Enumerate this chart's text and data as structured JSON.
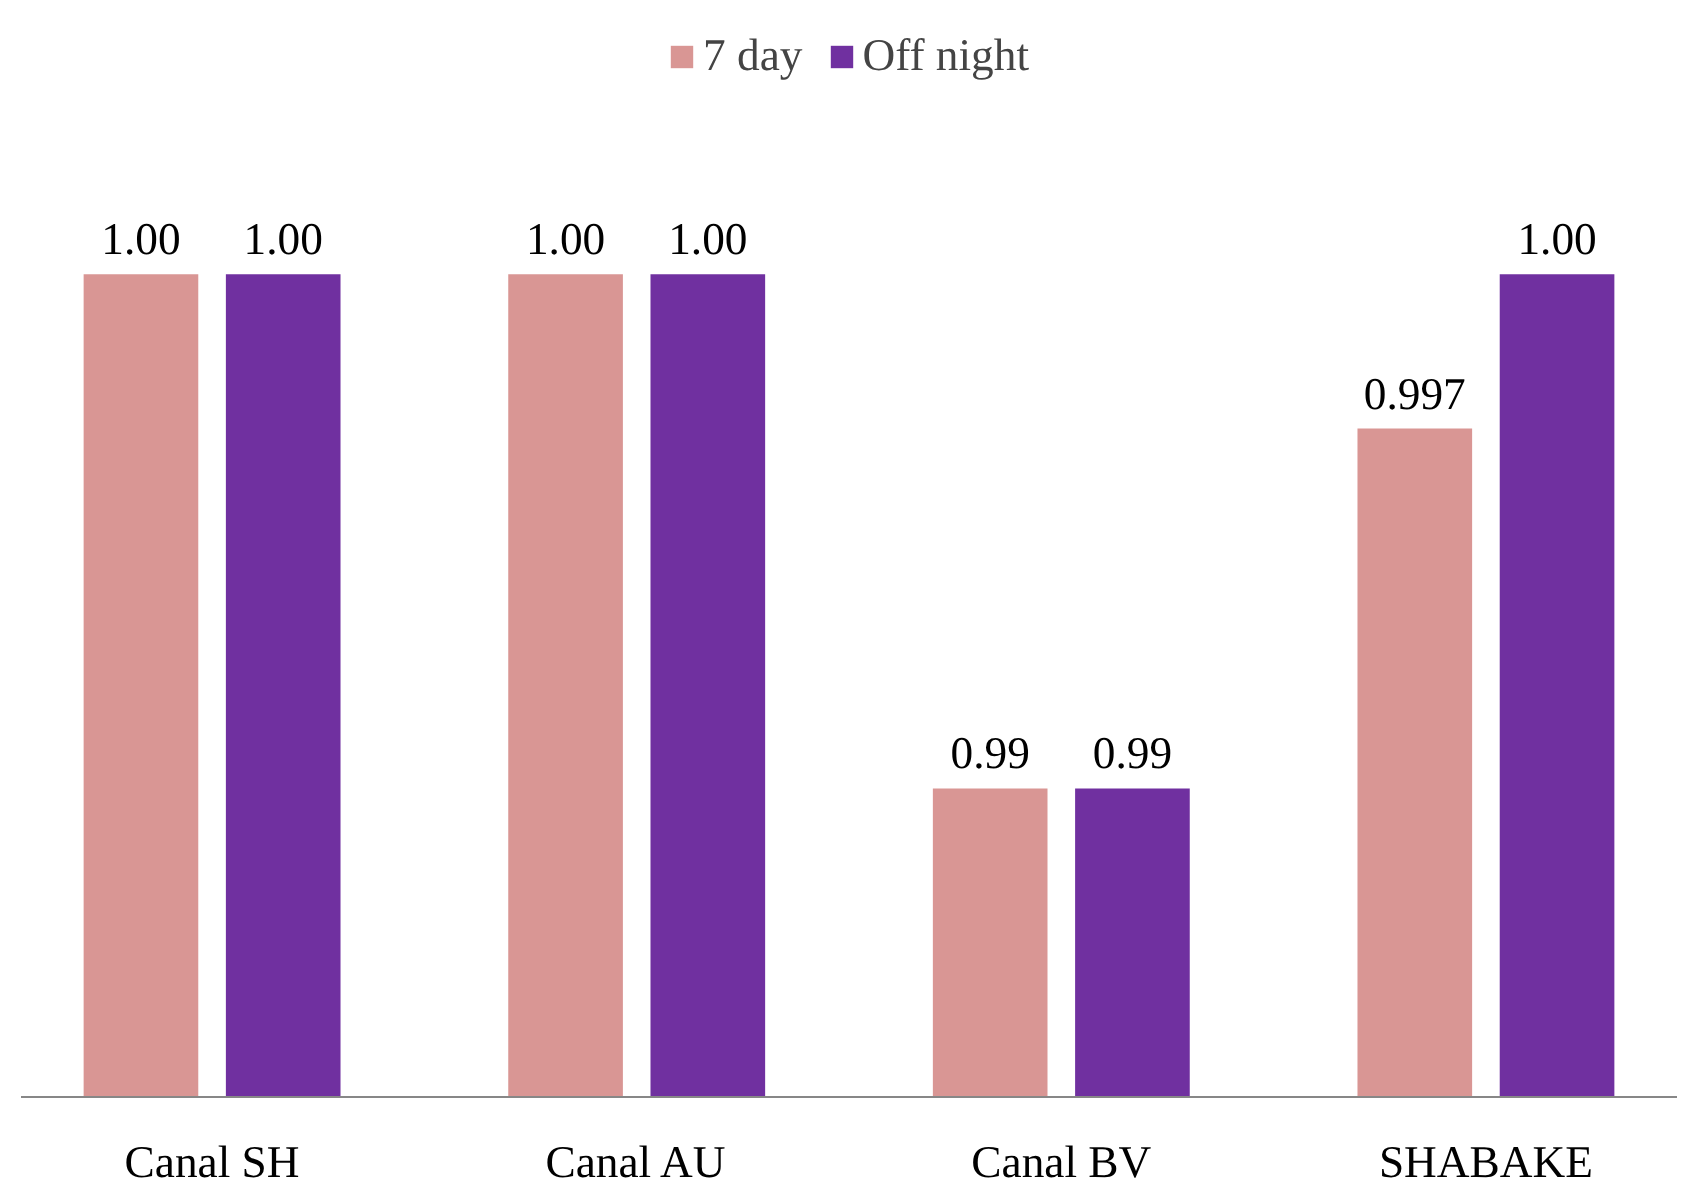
{
  "chart_data": {
    "type": "bar",
    "categories": [
      "Canal SH",
      "Canal AU",
      "Canal BV",
      "SHABAKE"
    ],
    "series": [
      {
        "name": "7 day",
        "color": "#d99694",
        "values": [
          1.0,
          1.0,
          0.99,
          0.997
        ],
        "value_labels": [
          "1.00",
          "1.00",
          "0.99",
          "0.997"
        ]
      },
      {
        "name": "Off night",
        "color": "#7030a0",
        "values": [
          1.0,
          1.0,
          0.99,
          1.0
        ],
        "value_labels": [
          "1.00",
          "1.00",
          "0.99",
          "1.00"
        ]
      }
    ],
    "ylim": [
      0.984,
      1.0
    ],
    "tick_labels": "x",
    "legend": "top"
  }
}
